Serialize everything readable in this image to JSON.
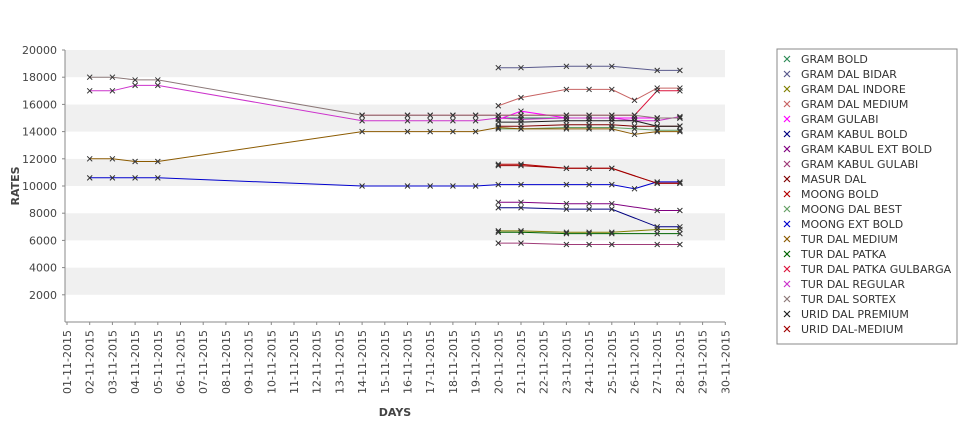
{
  "chart_data": {
    "type": "line",
    "title": "",
    "xlabel": "DAYS",
    "ylabel": "RATES",
    "x": [
      "01-11-2015",
      "02-11-2015",
      "03-11-2015",
      "04-11-2015",
      "05-11-2015",
      "06-11-2015",
      "07-11-2015",
      "08-11-2015",
      "09-11-2015",
      "10-11-2015",
      "11-11-2015",
      "12-11-2015",
      "13-11-2015",
      "14-11-2015",
      "15-11-2015",
      "16-11-2015",
      "17-11-2015",
      "18-11-2015",
      "19-11-2015",
      "20-11-2015",
      "21-11-2015",
      "22-11-2015",
      "23-11-2015",
      "24-11-2015",
      "25-11-2015",
      "26-11-2015",
      "27-11-2015",
      "28-11-2015",
      "29-11-2015",
      "30-11-2015"
    ],
    "ylim": [
      0,
      20000
    ],
    "yticks": [
      2000,
      4000,
      6000,
      8000,
      10000,
      12000,
      14000,
      16000,
      18000,
      20000
    ],
    "grid": true,
    "legend_position": "right",
    "series": [
      {
        "name": "GRAM BOLD",
        "color": "#2e8b57",
        "points": [
          [
            "20-11-2015",
            15000
          ],
          [
            "21-11-2015",
            15000
          ],
          [
            "23-11-2015",
            15000
          ],
          [
            "24-11-2015",
            15000
          ],
          [
            "25-11-2015",
            15000
          ],
          [
            "26-11-2015",
            15000
          ],
          [
            "27-11-2015",
            15000
          ],
          [
            "28-11-2015",
            15000
          ]
        ]
      },
      {
        "name": "GRAM DAL BIDAR",
        "color": "#5a5a8c",
        "points": [
          [
            "20-11-2015",
            18700
          ],
          [
            "21-11-2015",
            18700
          ],
          [
            "23-11-2015",
            18800
          ],
          [
            "24-11-2015",
            18800
          ],
          [
            "25-11-2015",
            18800
          ],
          [
            "27-11-2015",
            18500
          ],
          [
            "28-11-2015",
            18500
          ]
        ]
      },
      {
        "name": "GRAM DAL INDORE",
        "color": "#808000",
        "points": [
          [
            "20-11-2015",
            6700
          ],
          [
            "21-11-2015",
            6700
          ],
          [
            "23-11-2015",
            6600
          ],
          [
            "24-11-2015",
            6600
          ],
          [
            "25-11-2015",
            6600
          ],
          [
            "27-11-2015",
            6800
          ],
          [
            "28-11-2015",
            6800
          ]
        ]
      },
      {
        "name": "GRAM DAL MEDIUM",
        "color": "#c86464",
        "points": [
          [
            "20-11-2015",
            15900
          ],
          [
            "21-11-2015",
            16500
          ],
          [
            "23-11-2015",
            17100
          ],
          [
            "24-11-2015",
            17100
          ],
          [
            "25-11-2015",
            17100
          ],
          [
            "26-11-2015",
            16300
          ],
          [
            "27-11-2015",
            17200
          ],
          [
            "28-11-2015",
            17200
          ]
        ]
      },
      {
        "name": "GRAM GULABI",
        "color": "#ff00ff",
        "points": [
          [
            "20-11-2015",
            14900
          ],
          [
            "21-11-2015",
            15500
          ],
          [
            "23-11-2015",
            15000
          ],
          [
            "24-11-2015",
            15000
          ],
          [
            "25-11-2015",
            15000
          ],
          [
            "26-11-2015",
            15000
          ],
          [
            "27-11-2015",
            15000
          ],
          [
            "28-11-2015",
            15000
          ]
        ]
      },
      {
        "name": "GRAM KABUL BOLD",
        "color": "#000080",
        "points": [
          [
            "20-11-2015",
            8400
          ],
          [
            "21-11-2015",
            8400
          ],
          [
            "23-11-2015",
            8300
          ],
          [
            "24-11-2015",
            8300
          ],
          [
            "25-11-2015",
            8300
          ],
          [
            "27-11-2015",
            7000
          ],
          [
            "28-11-2015",
            7000
          ]
        ]
      },
      {
        "name": "GRAM KABUL EXT BOLD",
        "color": "#800080",
        "points": [
          [
            "20-11-2015",
            8800
          ],
          [
            "21-11-2015",
            8800
          ],
          [
            "23-11-2015",
            8700
          ],
          [
            "24-11-2015",
            8700
          ],
          [
            "25-11-2015",
            8700
          ],
          [
            "27-11-2015",
            8200
          ],
          [
            "28-11-2015",
            8200
          ]
        ]
      },
      {
        "name": "GRAM KABUL GULABI",
        "color": "#a03c78",
        "points": [
          [
            "20-11-2015",
            5800
          ],
          [
            "21-11-2015",
            5800
          ],
          [
            "23-11-2015",
            5700
          ],
          [
            "24-11-2015",
            5700
          ],
          [
            "25-11-2015",
            5700
          ],
          [
            "27-11-2015",
            5700
          ],
          [
            "28-11-2015",
            5700
          ]
        ]
      },
      {
        "name": "MASUR DAL",
        "color": "#800000",
        "points": [
          [
            "20-11-2015",
            14400
          ],
          [
            "21-11-2015",
            14400
          ],
          [
            "23-11-2015",
            14500
          ],
          [
            "24-11-2015",
            14500
          ],
          [
            "25-11-2015",
            14500
          ],
          [
            "26-11-2015",
            14400
          ],
          [
            "27-11-2015",
            14400
          ],
          [
            "28-11-2015",
            14400
          ]
        ]
      },
      {
        "name": "MOONG BOLD",
        "color": "#b40000",
        "points": [
          [
            "20-11-2015",
            11600
          ],
          [
            "21-11-2015",
            11600
          ],
          [
            "23-11-2015",
            11300
          ],
          [
            "24-11-2015",
            11300
          ],
          [
            "25-11-2015",
            11300
          ],
          [
            "27-11-2015",
            10200
          ],
          [
            "28-11-2015",
            10200
          ]
        ]
      },
      {
        "name": "MOONG DAL BEST",
        "color": "#64a064",
        "points": [
          [
            "20-11-2015",
            14200
          ],
          [
            "21-11-2015",
            14200
          ],
          [
            "23-11-2015",
            14300
          ],
          [
            "24-11-2015",
            14300
          ],
          [
            "25-11-2015",
            14300
          ],
          [
            "26-11-2015",
            14200
          ],
          [
            "27-11-2015",
            14100
          ],
          [
            "28-11-2015",
            14100
          ]
        ]
      },
      {
        "name": "MOONG EXT BOLD",
        "color": "#0000cd",
        "points": [
          [
            "02-11-2015",
            10600
          ],
          [
            "03-11-2015",
            10600
          ],
          [
            "04-11-2015",
            10600
          ],
          [
            "05-11-2015",
            10600
          ],
          [
            "14-11-2015",
            10000
          ],
          [
            "16-11-2015",
            10000
          ],
          [
            "17-11-2015",
            10000
          ],
          [
            "18-11-2015",
            10000
          ],
          [
            "19-11-2015",
            10000
          ],
          [
            "20-11-2015",
            10100
          ],
          [
            "21-11-2015",
            10100
          ],
          [
            "23-11-2015",
            10100
          ],
          [
            "24-11-2015",
            10100
          ],
          [
            "25-11-2015",
            10100
          ],
          [
            "26-11-2015",
            9800
          ],
          [
            "27-11-2015",
            10300
          ],
          [
            "28-11-2015",
            10300
          ]
        ]
      },
      {
        "name": "TUR DAL MEDIUM",
        "color": "#8b5a00",
        "points": [
          [
            "02-11-2015",
            12000
          ],
          [
            "03-11-2015",
            12000
          ],
          [
            "04-11-2015",
            11800
          ],
          [
            "05-11-2015",
            11800
          ],
          [
            "14-11-2015",
            14000
          ],
          [
            "16-11-2015",
            14000
          ],
          [
            "17-11-2015",
            14000
          ],
          [
            "18-11-2015",
            14000
          ],
          [
            "19-11-2015",
            14000
          ],
          [
            "20-11-2015",
            14300
          ],
          [
            "21-11-2015",
            14200
          ],
          [
            "23-11-2015",
            14200
          ],
          [
            "24-11-2015",
            14200
          ],
          [
            "25-11-2015",
            14200
          ],
          [
            "26-11-2015",
            13800
          ],
          [
            "27-11-2015",
            14000
          ],
          [
            "28-11-2015",
            14000
          ]
        ]
      },
      {
        "name": "TUR DAL PATKA",
        "color": "#006400",
        "points": [
          [
            "20-11-2015",
            6600
          ],
          [
            "21-11-2015",
            6600
          ],
          [
            "23-11-2015",
            6500
          ],
          [
            "24-11-2015",
            6500
          ],
          [
            "25-11-2015",
            6500
          ],
          [
            "27-11-2015",
            6500
          ],
          [
            "28-11-2015",
            6500
          ]
        ]
      },
      {
        "name": "TUR DAL PATKA GULBARGA",
        "color": "#dc143c",
        "points": [
          [
            "14-11-2015",
            15200
          ],
          [
            "16-11-2015",
            15200
          ],
          [
            "17-11-2015",
            15200
          ],
          [
            "18-11-2015",
            15200
          ],
          [
            "19-11-2015",
            15200
          ],
          [
            "20-11-2015",
            15200
          ],
          [
            "21-11-2015",
            15200
          ],
          [
            "23-11-2015",
            15200
          ],
          [
            "24-11-2015",
            15200
          ],
          [
            "25-11-2015",
            15200
          ],
          [
            "26-11-2015",
            15200
          ],
          [
            "27-11-2015",
            17000
          ],
          [
            "28-11-2015",
            17000
          ]
        ]
      },
      {
        "name": "TUR DAL REGULAR",
        "color": "#cc33cc",
        "points": [
          [
            "02-11-2015",
            17000
          ],
          [
            "03-11-2015",
            17000
          ],
          [
            "04-11-2015",
            17400
          ],
          [
            "05-11-2015",
            17400
          ],
          [
            "14-11-2015",
            14800
          ],
          [
            "16-11-2015",
            14800
          ],
          [
            "17-11-2015",
            14800
          ],
          [
            "18-11-2015",
            14800
          ],
          [
            "19-11-2015",
            14800
          ],
          [
            "20-11-2015",
            15000
          ],
          [
            "21-11-2015",
            14900
          ],
          [
            "23-11-2015",
            15000
          ],
          [
            "24-11-2015",
            15000
          ],
          [
            "25-11-2015",
            15000
          ],
          [
            "26-11-2015",
            14800
          ],
          [
            "27-11-2015",
            14800
          ],
          [
            "28-11-2015",
            15100
          ]
        ]
      },
      {
        "name": "TUR DAL SORTEX",
        "color": "#8c7878",
        "points": [
          [
            "02-11-2015",
            18000
          ],
          [
            "03-11-2015",
            18000
          ],
          [
            "04-11-2015",
            17800
          ],
          [
            "05-11-2015",
            17800
          ],
          [
            "14-11-2015",
            15200
          ],
          [
            "16-11-2015",
            15200
          ],
          [
            "17-11-2015",
            15200
          ],
          [
            "18-11-2015",
            15200
          ],
          [
            "19-11-2015",
            15200
          ],
          [
            "20-11-2015",
            15200
          ],
          [
            "21-11-2015",
            15200
          ],
          [
            "23-11-2015",
            15200
          ],
          [
            "24-11-2015",
            15200
          ],
          [
            "25-11-2015",
            15200
          ],
          [
            "26-11-2015",
            15200
          ],
          [
            "27-11-2015",
            15000
          ],
          [
            "28-11-2015",
            15000
          ]
        ]
      },
      {
        "name": "URID DAL PREMIUM",
        "color": "#1e1e1e",
        "points": [
          [
            "20-11-2015",
            14700
          ],
          [
            "21-11-2015",
            14700
          ],
          [
            "23-11-2015",
            14800
          ],
          [
            "24-11-2015",
            14800
          ],
          [
            "25-11-2015",
            14800
          ],
          [
            "26-11-2015",
            14800
          ],
          [
            "27-11-2015",
            14400
          ],
          [
            "28-11-2015",
            14400
          ]
        ]
      },
      {
        "name": "URID DAL-MEDIUM",
        "color": "#a00000",
        "points": [
          [
            "20-11-2015",
            11500
          ],
          [
            "21-11-2015",
            11500
          ],
          [
            "23-11-2015",
            11300
          ],
          [
            "24-11-2015",
            11300
          ],
          [
            "25-11-2015",
            11300
          ],
          [
            "27-11-2015",
            10200
          ],
          [
            "28-11-2015",
            10200
          ]
        ]
      }
    ]
  }
}
